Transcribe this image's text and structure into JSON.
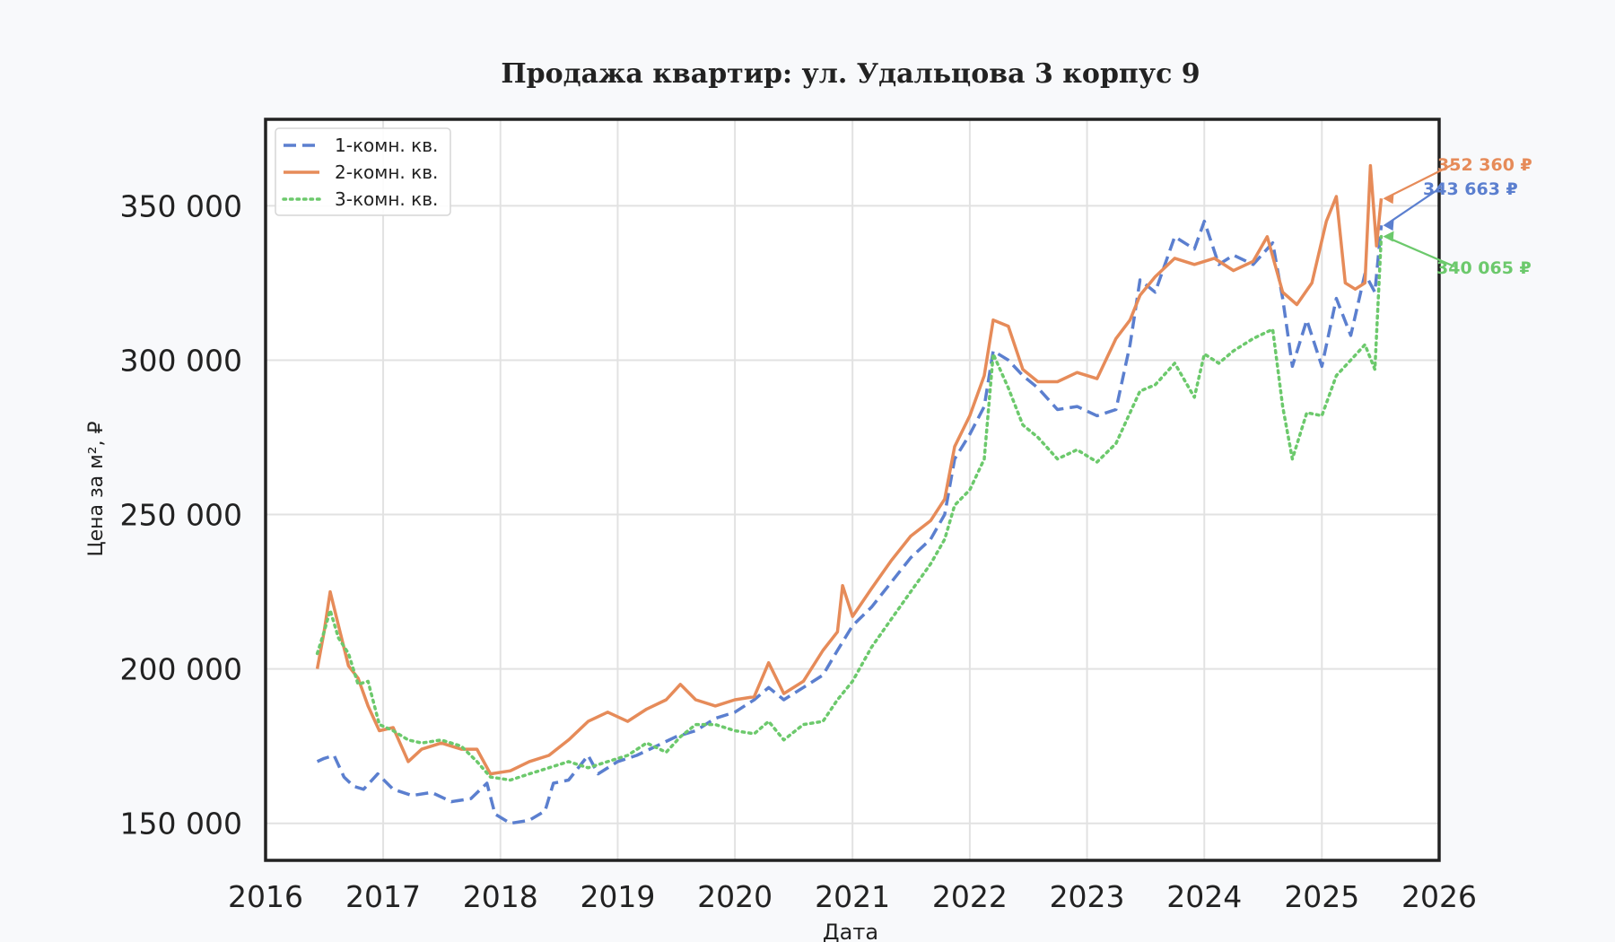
{
  "chart_data": {
    "type": "line",
    "title": "Продажа квартир: ул. Удальцова 3 корпус 9",
    "xlabel": "Дата",
    "ylabel": "Цена за м², ₽",
    "xlim": [
      "2016-01-01",
      "2026-01-01"
    ],
    "ylim": [
      138000,
      378000
    ],
    "x_ticks": [
      "2016",
      "2017",
      "2018",
      "2019",
      "2020",
      "2021",
      "2022",
      "2023",
      "2024",
      "2025",
      "2026"
    ],
    "y_ticks": [
      150000,
      200000,
      250000,
      300000,
      350000
    ],
    "y_tick_labels": [
      "150 000",
      "200 000",
      "250 000",
      "300 000",
      "350 000"
    ],
    "grid": true,
    "legend_position": "top-left",
    "colors": {
      "background": "#f8f9fb",
      "plot_bg": "#ffffff",
      "grid": "#e2e2e2",
      "axes": "#222222",
      "text": "#222222"
    },
    "series": [
      {
        "name": "1-комн. кв.",
        "color": "#5b7fcf",
        "dash": "dashed",
        "last_label": "343 663 ₽",
        "points": [
          [
            "2016-06-10",
            170000
          ],
          [
            "2016-07-01",
            171000
          ],
          [
            "2016-08-01",
            172000
          ],
          [
            "2016-09-01",
            165000
          ],
          [
            "2016-10-01",
            162000
          ],
          [
            "2016-11-01",
            161000
          ],
          [
            "2016-12-15",
            166000
          ],
          [
            "2017-02-01",
            161000
          ],
          [
            "2017-04-01",
            159000
          ],
          [
            "2017-06-01",
            160000
          ],
          [
            "2017-08-01",
            157000
          ],
          [
            "2017-10-01",
            158000
          ],
          [
            "2017-11-20",
            163000
          ],
          [
            "2017-12-15",
            153000
          ],
          [
            "2018-02-01",
            150000
          ],
          [
            "2018-04-01",
            151000
          ],
          [
            "2018-05-20",
            154000
          ],
          [
            "2018-06-15",
            163000
          ],
          [
            "2018-08-01",
            164000
          ],
          [
            "2018-10-01",
            172000
          ],
          [
            "2018-11-01",
            166000
          ],
          [
            "2019-01-01",
            170000
          ],
          [
            "2019-03-01",
            172000
          ],
          [
            "2019-05-01",
            175000
          ],
          [
            "2019-07-01",
            178000
          ],
          [
            "2019-09-01",
            180000
          ],
          [
            "2019-11-01",
            184000
          ],
          [
            "2020-01-01",
            186000
          ],
          [
            "2020-03-01",
            190000
          ],
          [
            "2020-04-15",
            194000
          ],
          [
            "2020-06-01",
            190000
          ],
          [
            "2020-08-01",
            194000
          ],
          [
            "2020-10-01",
            198000
          ],
          [
            "2020-11-15",
            206000
          ],
          [
            "2021-01-01",
            214000
          ],
          [
            "2021-03-01",
            220000
          ],
          [
            "2021-05-01",
            228000
          ],
          [
            "2021-07-01",
            236000
          ],
          [
            "2021-09-01",
            242000
          ],
          [
            "2021-10-15",
            250000
          ],
          [
            "2021-11-15",
            268000
          ],
          [
            "2022-01-01",
            276000
          ],
          [
            "2022-02-15",
            285000
          ],
          [
            "2022-03-15",
            303000
          ],
          [
            "2022-05-01",
            300000
          ],
          [
            "2022-06-15",
            295000
          ],
          [
            "2022-08-01",
            291000
          ],
          [
            "2022-10-01",
            284000
          ],
          [
            "2022-12-01",
            285000
          ],
          [
            "2023-02-01",
            282000
          ],
          [
            "2023-04-01",
            284000
          ],
          [
            "2023-05-15",
            305000
          ],
          [
            "2023-06-15",
            326000
          ],
          [
            "2023-08-01",
            322000
          ],
          [
            "2023-10-01",
            340000
          ],
          [
            "2023-12-01",
            336000
          ],
          [
            "2024-01-01",
            345000
          ],
          [
            "2024-02-15",
            331000
          ],
          [
            "2024-04-01",
            334000
          ],
          [
            "2024-06-01",
            331000
          ],
          [
            "2024-08-01",
            338000
          ],
          [
            "2024-09-01",
            320000
          ],
          [
            "2024-10-01",
            298000
          ],
          [
            "2024-11-15",
            313000
          ],
          [
            "2025-01-01",
            298000
          ],
          [
            "2025-02-15",
            320000
          ],
          [
            "2025-04-01",
            308000
          ],
          [
            "2025-05-15",
            328000
          ],
          [
            "2025-06-15",
            322000
          ],
          [
            "2025-07-05",
            343663
          ]
        ]
      },
      {
        "name": "2-комн. кв.",
        "color": "#e68b59",
        "dash": "solid",
        "last_label": "352 360 ₽",
        "points": [
          [
            "2016-06-10",
            200000
          ],
          [
            "2016-07-01",
            212000
          ],
          [
            "2016-07-20",
            225000
          ],
          [
            "2016-08-15",
            214000
          ],
          [
            "2016-09-15",
            201000
          ],
          [
            "2016-10-15",
            197000
          ],
          [
            "2016-11-15",
            188000
          ],
          [
            "2016-12-20",
            180000
          ],
          [
            "2017-02-01",
            181000
          ],
          [
            "2017-03-20",
            170000
          ],
          [
            "2017-05-01",
            174000
          ],
          [
            "2017-07-01",
            176000
          ],
          [
            "2017-09-01",
            174000
          ],
          [
            "2017-10-20",
            174000
          ],
          [
            "2017-12-01",
            166000
          ],
          [
            "2018-02-01",
            167000
          ],
          [
            "2018-04-01",
            170000
          ],
          [
            "2018-06-01",
            172000
          ],
          [
            "2018-08-01",
            177000
          ],
          [
            "2018-10-01",
            183000
          ],
          [
            "2018-12-01",
            186000
          ],
          [
            "2019-02-01",
            183000
          ],
          [
            "2019-04-01",
            187000
          ],
          [
            "2019-06-01",
            190000
          ],
          [
            "2019-07-15",
            195000
          ],
          [
            "2019-09-01",
            190000
          ],
          [
            "2019-11-01",
            188000
          ],
          [
            "2020-01-01",
            190000
          ],
          [
            "2020-03-01",
            191000
          ],
          [
            "2020-04-15",
            202000
          ],
          [
            "2020-06-01",
            192000
          ],
          [
            "2020-08-01",
            196000
          ],
          [
            "2020-10-01",
            206000
          ],
          [
            "2020-11-15",
            212000
          ],
          [
            "2020-12-01",
            227000
          ],
          [
            "2021-01-01",
            217000
          ],
          [
            "2021-03-01",
            226000
          ],
          [
            "2021-05-01",
            235000
          ],
          [
            "2021-07-01",
            243000
          ],
          [
            "2021-09-01",
            248000
          ],
          [
            "2021-10-15",
            255000
          ],
          [
            "2021-11-15",
            272000
          ],
          [
            "2022-01-01",
            282000
          ],
          [
            "2022-02-15",
            295000
          ],
          [
            "2022-03-15",
            313000
          ],
          [
            "2022-05-01",
            311000
          ],
          [
            "2022-06-15",
            297000
          ],
          [
            "2022-08-01",
            293000
          ],
          [
            "2022-10-01",
            293000
          ],
          [
            "2022-12-01",
            296000
          ],
          [
            "2023-02-01",
            294000
          ],
          [
            "2023-04-01",
            307000
          ],
          [
            "2023-05-15",
            313000
          ],
          [
            "2023-06-15",
            321000
          ],
          [
            "2023-08-01",
            327000
          ],
          [
            "2023-10-01",
            333000
          ],
          [
            "2023-12-01",
            331000
          ],
          [
            "2024-02-01",
            333000
          ],
          [
            "2024-04-01",
            329000
          ],
          [
            "2024-06-01",
            332000
          ],
          [
            "2024-07-15",
            340000
          ],
          [
            "2024-09-01",
            322000
          ],
          [
            "2024-10-15",
            318000
          ],
          [
            "2024-12-01",
            325000
          ],
          [
            "2025-01-15",
            345000
          ],
          [
            "2025-02-15",
            353000
          ],
          [
            "2025-03-15",
            325000
          ],
          [
            "2025-04-15",
            323000
          ],
          [
            "2025-05-15",
            325000
          ],
          [
            "2025-06-01",
            363000
          ],
          [
            "2025-06-20",
            337000
          ],
          [
            "2025-07-05",
            352360
          ]
        ]
      },
      {
        "name": "3-комн. кв.",
        "color": "#6cc96c",
        "dash": "dotted",
        "last_label": "340 065 ₽",
        "points": [
          [
            "2016-06-10",
            205000
          ],
          [
            "2016-07-01",
            212000
          ],
          [
            "2016-07-20",
            219000
          ],
          [
            "2016-08-15",
            210000
          ],
          [
            "2016-09-15",
            205000
          ],
          [
            "2016-10-15",
            195000
          ],
          [
            "2016-11-15",
            196000
          ],
          [
            "2016-12-20",
            182000
          ],
          [
            "2017-02-01",
            180000
          ],
          [
            "2017-03-20",
            177000
          ],
          [
            "2017-05-01",
            176000
          ],
          [
            "2017-07-01",
            177000
          ],
          [
            "2017-09-01",
            175000
          ],
          [
            "2017-10-20",
            170000
          ],
          [
            "2017-12-01",
            165000
          ],
          [
            "2018-02-01",
            164000
          ],
          [
            "2018-04-01",
            166000
          ],
          [
            "2018-06-01",
            168000
          ],
          [
            "2018-08-01",
            170000
          ],
          [
            "2018-10-01",
            168000
          ],
          [
            "2018-12-01",
            170000
          ],
          [
            "2019-02-01",
            172000
          ],
          [
            "2019-04-01",
            176000
          ],
          [
            "2019-06-01",
            173000
          ],
          [
            "2019-07-15",
            178000
          ],
          [
            "2019-09-01",
            182000
          ],
          [
            "2019-11-01",
            182000
          ],
          [
            "2020-01-01",
            180000
          ],
          [
            "2020-03-01",
            179000
          ],
          [
            "2020-04-15",
            183000
          ],
          [
            "2020-06-01",
            177000
          ],
          [
            "2020-08-01",
            182000
          ],
          [
            "2020-10-01",
            183000
          ],
          [
            "2020-11-15",
            190000
          ],
          [
            "2021-01-01",
            196000
          ],
          [
            "2021-03-01",
            207000
          ],
          [
            "2021-05-01",
            216000
          ],
          [
            "2021-07-01",
            225000
          ],
          [
            "2021-09-01",
            234000
          ],
          [
            "2021-10-15",
            242000
          ],
          [
            "2021-11-15",
            253000
          ],
          [
            "2022-01-01",
            258000
          ],
          [
            "2022-02-15",
            268000
          ],
          [
            "2022-03-15",
            302000
          ],
          [
            "2022-05-01",
            291000
          ],
          [
            "2022-06-15",
            279000
          ],
          [
            "2022-08-01",
            275000
          ],
          [
            "2022-10-01",
            268000
          ],
          [
            "2022-12-01",
            271000
          ],
          [
            "2023-02-01",
            267000
          ],
          [
            "2023-04-01",
            273000
          ],
          [
            "2023-05-15",
            283000
          ],
          [
            "2023-06-15",
            290000
          ],
          [
            "2023-08-01",
            292000
          ],
          [
            "2023-10-01",
            299000
          ],
          [
            "2023-12-01",
            288000
          ],
          [
            "2024-01-01",
            302000
          ],
          [
            "2024-02-15",
            299000
          ],
          [
            "2024-04-01",
            303000
          ],
          [
            "2024-06-01",
            307000
          ],
          [
            "2024-08-01",
            310000
          ],
          [
            "2024-09-01",
            285000
          ],
          [
            "2024-10-01",
            268000
          ],
          [
            "2024-11-15",
            283000
          ],
          [
            "2025-01-01",
            282000
          ],
          [
            "2025-02-15",
            295000
          ],
          [
            "2025-04-01",
            300000
          ],
          [
            "2025-05-15",
            305000
          ],
          [
            "2025-06-15",
            297000
          ],
          [
            "2025-07-05",
            340065
          ]
        ]
      }
    ]
  }
}
